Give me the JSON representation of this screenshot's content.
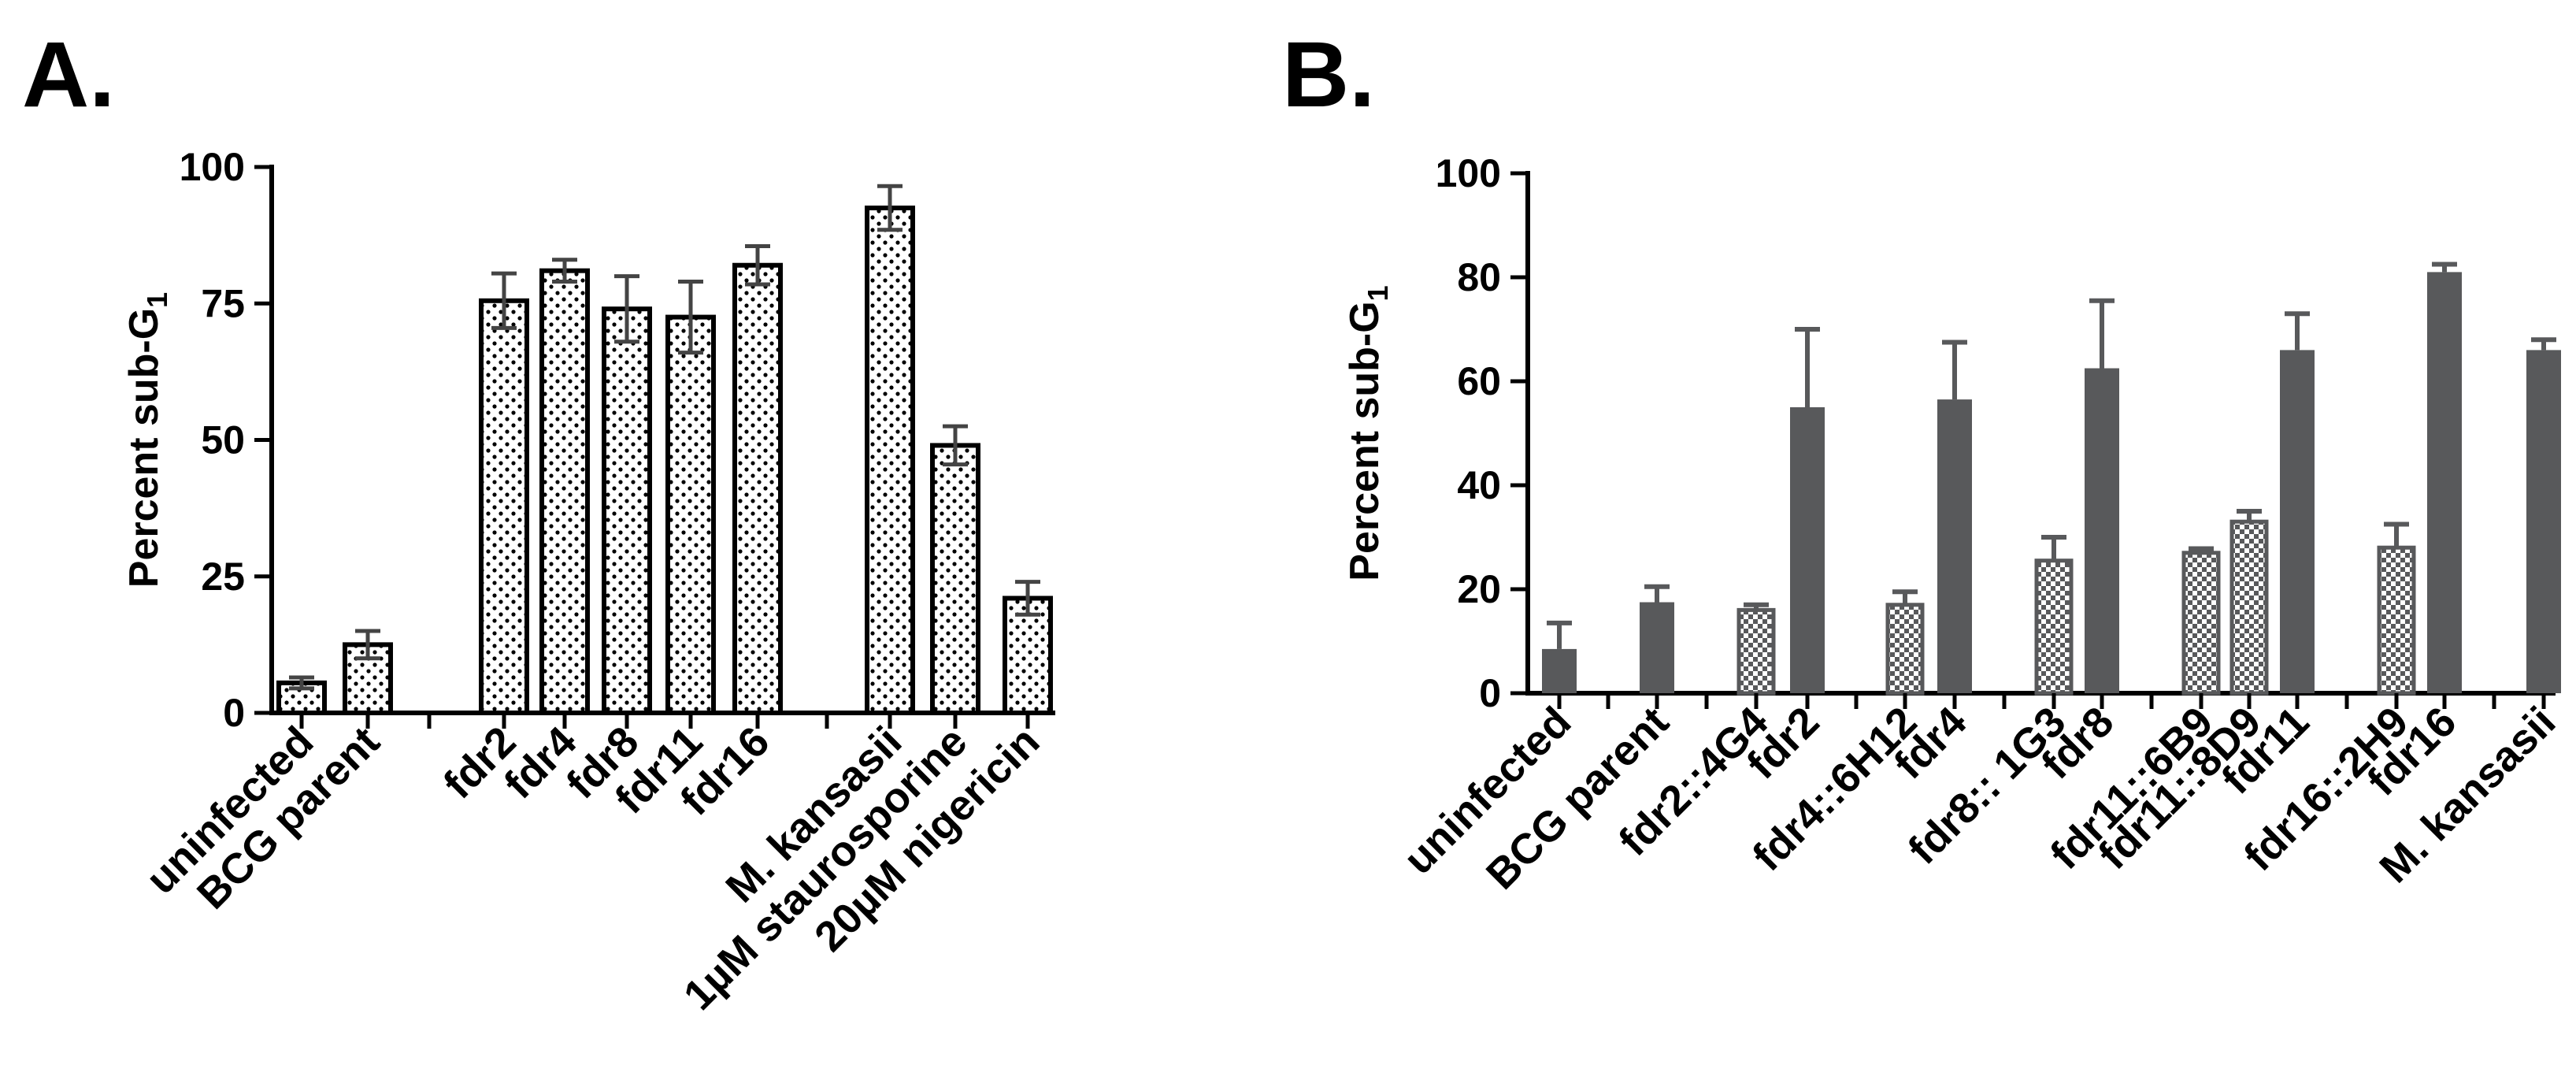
{
  "figure": {
    "panel_a_letter": "A.",
    "panel_b_letter": "B."
  },
  "chart_data": [
    {
      "panel": "A.",
      "type": "bar",
      "ylabel": "Percent sub-G",
      "ylabel_subscript": "1",
      "ylim": [
        0,
        100
      ],
      "yticks": [
        "0",
        "25",
        "50",
        "75",
        "100"
      ],
      "ytick_values": [
        0,
        25,
        50,
        75,
        100
      ],
      "fill_pattern": "dotted",
      "categories": [
        "uninfected",
        "BCG parent",
        "fdr2",
        "fdr4",
        "fdr8",
        "fdr11",
        "fdr16",
        "M. kansasii",
        "1µM staurosporine",
        "20µM nigericin"
      ],
      "values": [
        5.5,
        12.5,
        75.5,
        81,
        74,
        72.5,
        82,
        92.5,
        49,
        21
      ],
      "errors": [
        1.0,
        2.5,
        5.0,
        2.0,
        6.0,
        6.5,
        3.5,
        4.0,
        3.5,
        3.0
      ],
      "groups": [
        [
          0,
          1
        ],
        [
          2,
          3,
          4,
          5,
          6
        ],
        [
          7,
          8,
          9
        ]
      ]
    },
    {
      "panel": "B.",
      "type": "bar",
      "ylabel": "Percent sub-G",
      "ylabel_subscript": "1",
      "ylim": [
        0,
        100
      ],
      "yticks": [
        "0",
        "20",
        "40",
        "60",
        "80",
        "100"
      ],
      "ytick_values": [
        0,
        20,
        40,
        60,
        80,
        100
      ],
      "categories": [
        "uninfected",
        "BCG parent",
        "fdr2::4G4",
        "fdr2",
        "fdr4::6H12",
        "fdr4",
        "fdr8:: 1G3",
        "fdr8",
        "fdr11::6B9",
        "fdr11::8D9",
        "fdr11",
        "fdr16::2H9",
        "fdr16",
        "M. kansasii"
      ],
      "values": [
        8.5,
        17.5,
        16,
        55,
        17,
        56.5,
        25.5,
        62.5,
        27,
        33,
        66,
        28,
        81,
        66
      ],
      "errors": [
        5.0,
        3.0,
        1.0,
        15.0,
        2.5,
        11.0,
        4.5,
        13.0,
        0.8,
        2.0,
        7.0,
        4.5,
        1.5,
        2.0
      ],
      "styles": [
        "solid",
        "solid",
        "checker",
        "solid",
        "checker",
        "solid",
        "checker",
        "solid",
        "checker",
        "checker",
        "solid",
        "checker",
        "solid",
        "solid"
      ],
      "series_colors": {
        "solid": "#58595b",
        "checker": "#58595b"
      }
    }
  ]
}
